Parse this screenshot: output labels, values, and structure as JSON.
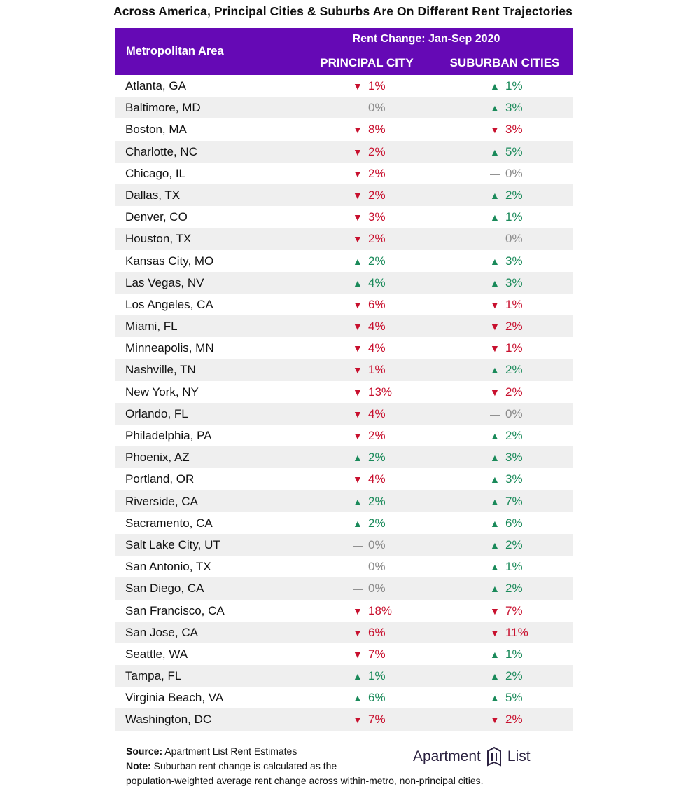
{
  "title": "Across America, Principal Cities & Suburbs Are On Different Rent Trajectories",
  "header": {
    "metro_label": "Metropolitan Area",
    "group_label": "Rent Change: Jan-Sep 2020",
    "col_principal": "PRINCIPAL CITY",
    "col_suburban": "SUBURBAN CITIES"
  },
  "colors": {
    "header_bg": "#6509b5",
    "down": "#c8102e",
    "up": "#1a8a5a",
    "flat": "#8a8a8a"
  },
  "chart_data": {
    "type": "table",
    "columns": [
      "Metropolitan Area",
      "PRINCIPAL CITY",
      "SUBURBAN CITIES"
    ],
    "rows": [
      {
        "metro": "Atlanta, GA",
        "pc": "1%",
        "pc_dir": "down",
        "sc": "1%",
        "sc_dir": "up"
      },
      {
        "metro": "Baltimore, MD",
        "pc": "0%",
        "pc_dir": "flat",
        "sc": "3%",
        "sc_dir": "up"
      },
      {
        "metro": "Boston, MA",
        "pc": "8%",
        "pc_dir": "down",
        "sc": "3%",
        "sc_dir": "down"
      },
      {
        "metro": "Charlotte, NC",
        "pc": "2%",
        "pc_dir": "down",
        "sc": "5%",
        "sc_dir": "up"
      },
      {
        "metro": "Chicago, IL",
        "pc": "2%",
        "pc_dir": "down",
        "sc": "0%",
        "sc_dir": "flat"
      },
      {
        "metro": "Dallas, TX",
        "pc": "2%",
        "pc_dir": "down",
        "sc": "2%",
        "sc_dir": "up"
      },
      {
        "metro": "Denver, CO",
        "pc": "3%",
        "pc_dir": "down",
        "sc": "1%",
        "sc_dir": "up"
      },
      {
        "metro": "Houston, TX",
        "pc": "2%",
        "pc_dir": "down",
        "sc": "0%",
        "sc_dir": "flat"
      },
      {
        "metro": "Kansas City, MO",
        "pc": "2%",
        "pc_dir": "up",
        "sc": "3%",
        "sc_dir": "up"
      },
      {
        "metro": "Las Vegas, NV",
        "pc": "4%",
        "pc_dir": "up",
        "sc": "3%",
        "sc_dir": "up"
      },
      {
        "metro": "Los Angeles, CA",
        "pc": "6%",
        "pc_dir": "down",
        "sc": "1%",
        "sc_dir": "down"
      },
      {
        "metro": "Miami, FL",
        "pc": "4%",
        "pc_dir": "down",
        "sc": "2%",
        "sc_dir": "down"
      },
      {
        "metro": "Minneapolis, MN",
        "pc": "4%",
        "pc_dir": "down",
        "sc": "1%",
        "sc_dir": "down"
      },
      {
        "metro": "Nashville, TN",
        "pc": "1%",
        "pc_dir": "down",
        "sc": "2%",
        "sc_dir": "up"
      },
      {
        "metro": "New York, NY",
        "pc": "13%",
        "pc_dir": "down",
        "sc": "2%",
        "sc_dir": "down"
      },
      {
        "metro": "Orlando, FL",
        "pc": "4%",
        "pc_dir": "down",
        "sc": "0%",
        "sc_dir": "flat"
      },
      {
        "metro": "Philadelphia, PA",
        "pc": "2%",
        "pc_dir": "down",
        "sc": "2%",
        "sc_dir": "up"
      },
      {
        "metro": "Phoenix, AZ",
        "pc": "2%",
        "pc_dir": "up",
        "sc": "3%",
        "sc_dir": "up"
      },
      {
        "metro": "Portland, OR",
        "pc": "4%",
        "pc_dir": "down",
        "sc": "3%",
        "sc_dir": "up"
      },
      {
        "metro": "Riverside, CA",
        "pc": "2%",
        "pc_dir": "up",
        "sc": "7%",
        "sc_dir": "up"
      },
      {
        "metro": "Sacramento, CA",
        "pc": "2%",
        "pc_dir": "up",
        "sc": "6%",
        "sc_dir": "up"
      },
      {
        "metro": "Salt Lake City, UT",
        "pc": "0%",
        "pc_dir": "flat",
        "sc": "2%",
        "sc_dir": "up"
      },
      {
        "metro": "San Antonio, TX",
        "pc": "0%",
        "pc_dir": "flat",
        "sc": "1%",
        "sc_dir": "up"
      },
      {
        "metro": "San Diego, CA",
        "pc": "0%",
        "pc_dir": "flat",
        "sc": "2%",
        "sc_dir": "up"
      },
      {
        "metro": "San Francisco, CA",
        "pc": "18%",
        "pc_dir": "down",
        "sc": "7%",
        "sc_dir": "down"
      },
      {
        "metro": "San Jose, CA",
        "pc": "6%",
        "pc_dir": "down",
        "sc": "11%",
        "sc_dir": "down"
      },
      {
        "metro": "Seattle, WA",
        "pc": "7%",
        "pc_dir": "down",
        "sc": "1%",
        "sc_dir": "up"
      },
      {
        "metro": "Tampa, FL",
        "pc": "1%",
        "pc_dir": "up",
        "sc": "2%",
        "sc_dir": "up"
      },
      {
        "metro": "Virginia Beach, VA",
        "pc": "6%",
        "pc_dir": "up",
        "sc": "5%",
        "sc_dir": "up"
      },
      {
        "metro": "Washington, DC",
        "pc": "7%",
        "pc_dir": "down",
        "sc": "2%",
        "sc_dir": "down"
      }
    ]
  },
  "footer": {
    "source_label": "Source:",
    "source_text": "Apartment List Rent Estimates",
    "note_label": "Note:",
    "note_text_1": "Suburban rent change is calculated as the",
    "note_text_2": "population-weighted average rent change across within-metro, non-principal cities."
  },
  "logo": {
    "left": "Apartment",
    "right": "List",
    "icon": "apartment-list-logo-icon"
  }
}
